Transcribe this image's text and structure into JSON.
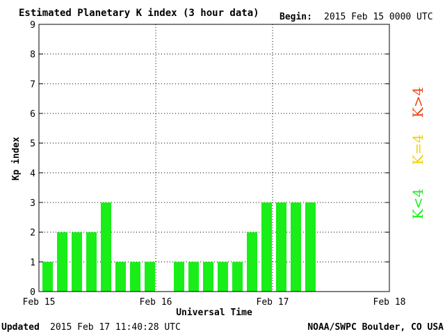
{
  "header": {
    "title": "Estimated Planetary K index (3 hour data)",
    "begin_label": "Begin:",
    "begin_value": "2015 Feb 15 0000 UTC"
  },
  "footer": {
    "updated_label": "Updated",
    "updated_value": "2015 Feb 17 11:40:28 UTC",
    "credit": "NOAA/SWPC Boulder, CO USA"
  },
  "legend": {
    "low": {
      "label": "K<4",
      "color": "#19ee19"
    },
    "mid": {
      "label": "K=4",
      "color": "#f0d000"
    },
    "high": {
      "label": "K>4",
      "color": "#ee4411"
    }
  },
  "chart_data": {
    "type": "bar",
    "title": "Estimated Planetary K index (3 hour data)",
    "xlabel": "Universal Time",
    "ylabel": "Kp index",
    "ylim": [
      0,
      9
    ],
    "yticks": [
      "0",
      "1",
      "2",
      "3",
      "4",
      "5",
      "6",
      "7",
      "8",
      "9"
    ],
    "xticks": [
      "Feb 15",
      "Feb 16",
      "Feb 17",
      "Feb 18"
    ],
    "grid": true,
    "bar_color": "#19ee19",
    "slots_per_day": 8,
    "values": [
      1,
      2,
      2,
      2,
      3,
      1,
      1,
      1,
      null,
      1,
      1,
      1,
      1,
      1,
      2,
      3,
      3,
      3,
      3
    ]
  }
}
